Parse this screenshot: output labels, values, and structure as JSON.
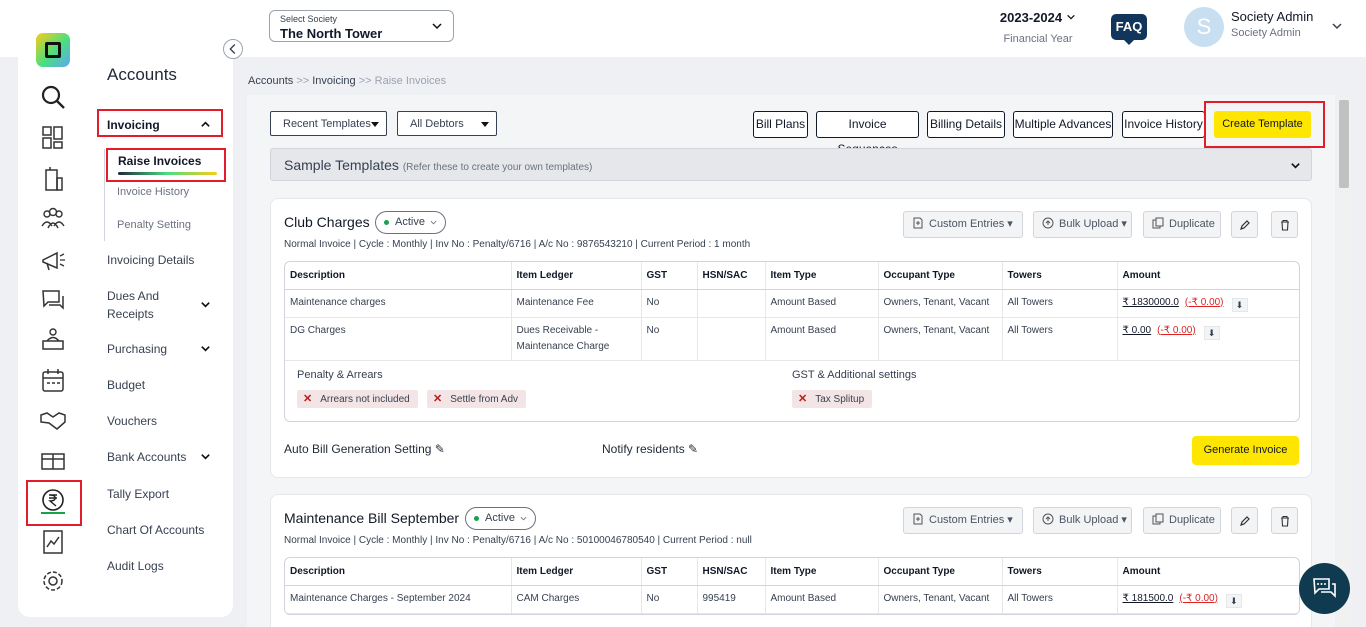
{
  "header": {
    "society_label": "Select Society",
    "society_value": "The North Tower",
    "year": "2023-2024",
    "year_sub": "Financial Year",
    "faq": "FAQ",
    "avatar_letter": "S",
    "user_name": "Society Admin",
    "user_role": "Society Admin"
  },
  "sidebar": {
    "title": "Accounts",
    "invoicing": "Invoicing",
    "sub_items": [
      "Raise Invoices",
      "Invoice History",
      "Penalty Setting"
    ],
    "items": [
      "Invoicing Details",
      "Dues And",
      "Receipts",
      "Purchasing",
      "Budget",
      "Vouchers",
      "Bank Accounts",
      "Tally Export",
      "Chart Of Accounts",
      "Audit Logs"
    ]
  },
  "breadcrumb": {
    "a": "Accounts",
    "sep1": ">>",
    "b": "Invoicing",
    "sep2": ">>",
    "c": "Raise Invoices"
  },
  "toolbar": {
    "recent_templates": "Recent Templates",
    "all_debtors": "All Debtors",
    "buttons": [
      "Bill Plans",
      "Invoice Sequences",
      "Billing Details",
      "Multiple Advances",
      "Invoice History"
    ],
    "create_template": "Create Template"
  },
  "sample": {
    "title": "Sample Templates",
    "hint": "(Refer these to create your own templates)"
  },
  "cards": [
    {
      "title": "Club Charges",
      "status": "Active",
      "meta": "Normal Invoice | Cycle : Monthly | Inv No : Penalty/6716 | A/c No : 9876543210 | Current Period : 1 month",
      "columns": [
        "Description",
        "Item Ledger",
        "GST",
        "HSN/SAC",
        "Item Type",
        "Occupant Type",
        "Towers",
        "Amount"
      ],
      "rows": [
        {
          "description": "Maintenance charges",
          "ledger": "Maintenance Fee",
          "gst": "No",
          "hsn": "",
          "type": "Amount Based",
          "occupant": "Owners, Tenant, Vacant",
          "towers": "All Towers",
          "amount": "₹ 1830000.0",
          "neg": "(-₹ 0.00)"
        },
        {
          "description": "DG Charges",
          "ledger": "Dues Receivable -",
          "ledger2": "Maintenance Charge",
          "gst": "No",
          "hsn": "",
          "type": "Amount Based",
          "occupant": "Owners, Tenant, Vacant",
          "towers": "All Towers",
          "amount": "₹ 0.00",
          "neg": "(-₹ 0.00)"
        }
      ],
      "penalty_heading": "Penalty & Arrears",
      "chips_left": [
        "Arrears not included",
        "Settle from Adv"
      ],
      "gst_heading": "GST & Additional settings",
      "chips_right": [
        "Tax Splitup"
      ],
      "auto_bill": "Auto Bill Generation Setting",
      "notify": "Notify residents",
      "generate": "Generate Invoice"
    },
    {
      "title": "Maintenance Bill September",
      "status": "Active",
      "meta": "Normal Invoice | Cycle : Monthly | Inv No : Penalty/6716 | A/c No : 50100046780540 | Current Period : null",
      "columns": [
        "Description",
        "Item Ledger",
        "GST",
        "HSN/SAC",
        "Item Type",
        "Occupant Type",
        "Towers",
        "Amount"
      ],
      "rows": [
        {
          "description": "Maintenance Charges - September 2024",
          "ledger": "CAM Charges",
          "gst": "No",
          "hsn": "995419",
          "type": "Amount Based",
          "occupant": "Owners, Tenant, Vacant",
          "towers": "All Towers",
          "amount": "₹ 181500.0",
          "neg": "(-₹ 0.00)"
        }
      ]
    }
  ],
  "card_actions": {
    "custom_entries": "Custom Entries",
    "bulk_upload": "Bulk Upload",
    "duplicate": "Duplicate"
  },
  "colors": {
    "accent_yellow": "#ffe600",
    "highlight_red": "#e11d2b",
    "navy": "#12355b"
  }
}
